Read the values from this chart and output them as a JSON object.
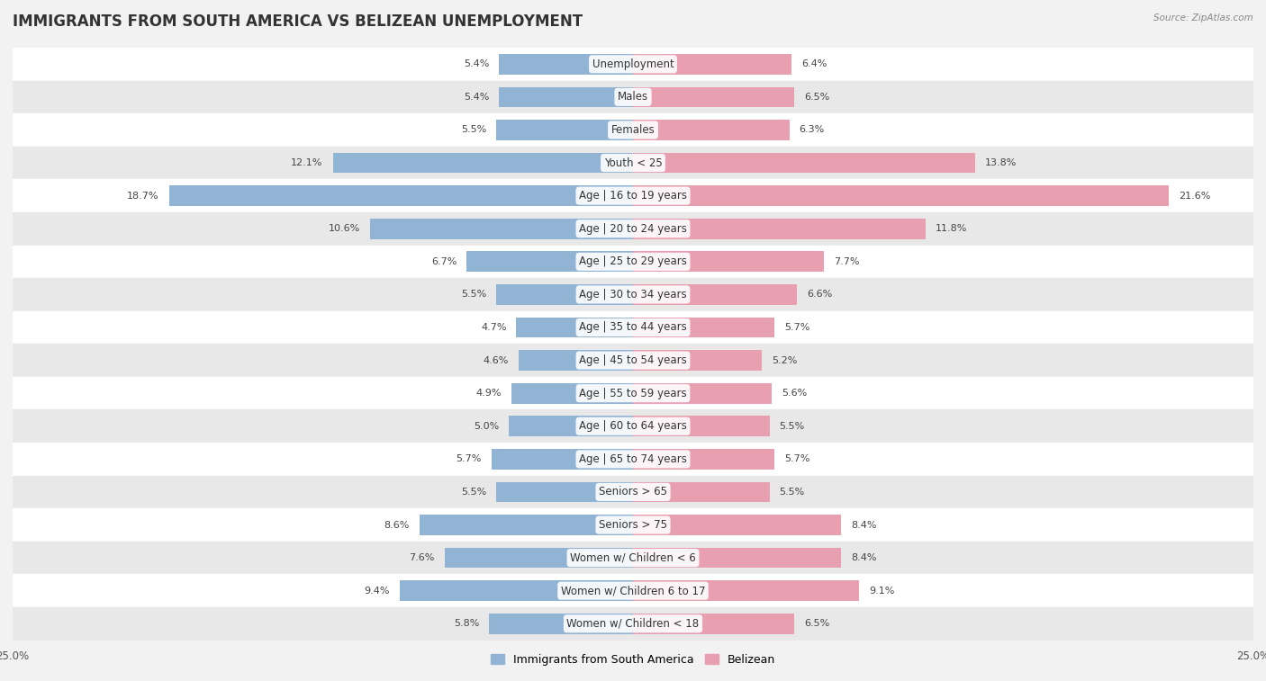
{
  "title": "IMMIGRANTS FROM SOUTH AMERICA VS BELIZEAN UNEMPLOYMENT",
  "source": "Source: ZipAtlas.com",
  "categories": [
    "Unemployment",
    "Males",
    "Females",
    "Youth < 25",
    "Age | 16 to 19 years",
    "Age | 20 to 24 years",
    "Age | 25 to 29 years",
    "Age | 30 to 34 years",
    "Age | 35 to 44 years",
    "Age | 45 to 54 years",
    "Age | 55 to 59 years",
    "Age | 60 to 64 years",
    "Age | 65 to 74 years",
    "Seniors > 65",
    "Seniors > 75",
    "Women w/ Children < 6",
    "Women w/ Children 6 to 17",
    "Women w/ Children < 18"
  ],
  "left_values": [
    5.4,
    5.4,
    5.5,
    12.1,
    18.7,
    10.6,
    6.7,
    5.5,
    4.7,
    4.6,
    4.9,
    5.0,
    5.7,
    5.5,
    8.6,
    7.6,
    9.4,
    5.8
  ],
  "right_values": [
    6.4,
    6.5,
    6.3,
    13.8,
    21.6,
    11.8,
    7.7,
    6.6,
    5.7,
    5.2,
    5.6,
    5.5,
    5.7,
    5.5,
    8.4,
    8.4,
    9.1,
    6.5
  ],
  "left_color": "#92b4d4",
  "right_color": "#e8a0b0",
  "left_label": "Immigrants from South America",
  "right_label": "Belizean",
  "xlim": 25.0,
  "background_color": "#f2f2f2",
  "bar_height": 0.62,
  "row_colors": [
    "#ffffff",
    "#e8e8e8"
  ],
  "title_fontsize": 12,
  "label_fontsize": 8.5,
  "value_fontsize": 8,
  "axis_label_fontsize": 8.5
}
